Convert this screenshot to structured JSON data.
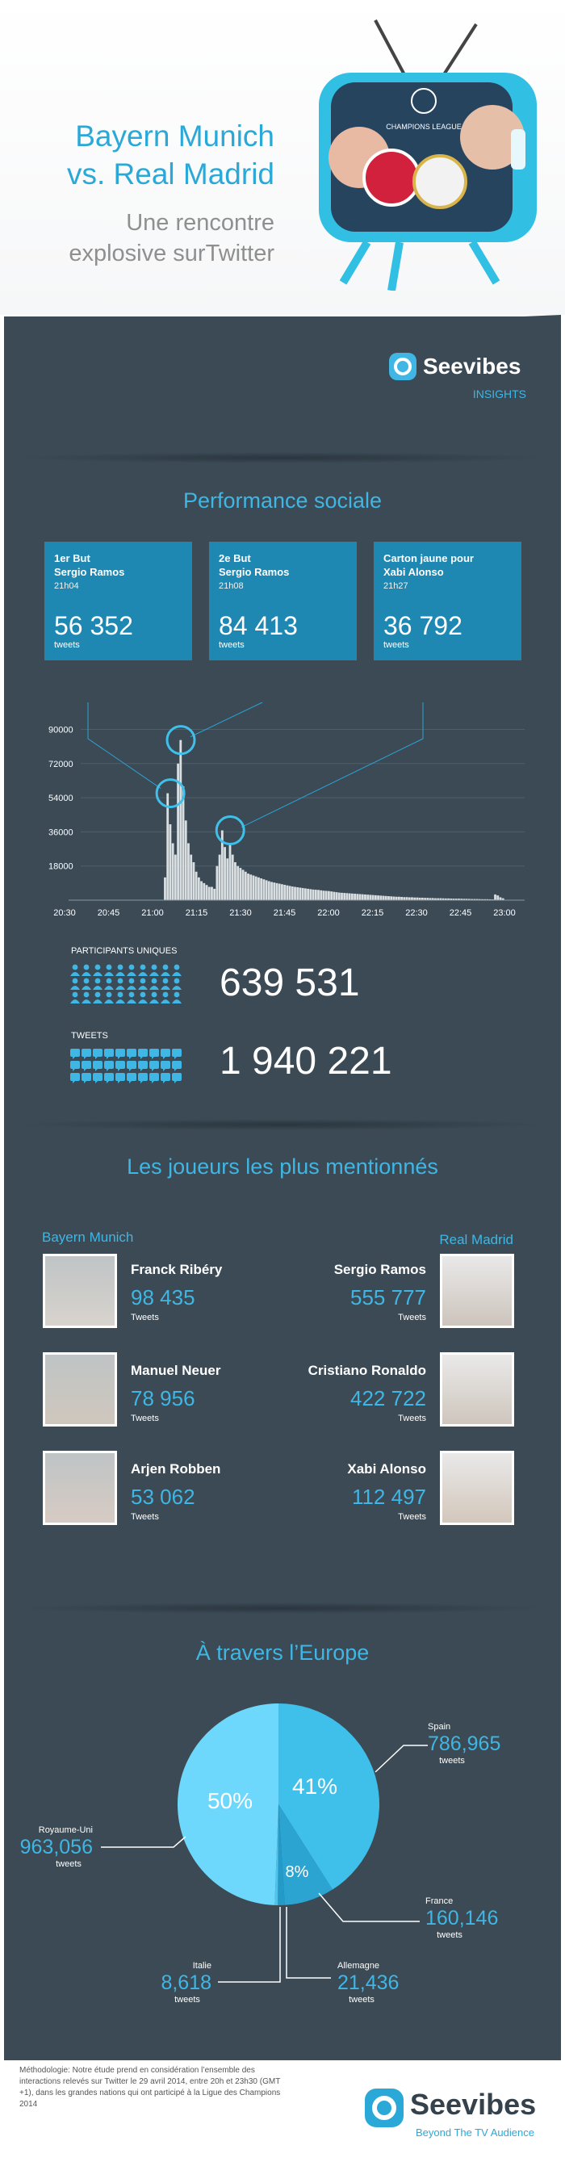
{
  "header": {
    "title_line1": "Bayern Munich",
    "title_line2": "vs. Real Madrid",
    "subtitle_line1": "Une rencontre",
    "subtitle_line2": "explosive surTwitter",
    "tv_caption": "CHAMPIONS LEAGUE"
  },
  "brand": {
    "name": "Seevibes",
    "sub": "INSIGHTS"
  },
  "social": {
    "title": "Performance sociale",
    "cards": [
      {
        "title1": "1er But",
        "title2": "Sergio Ramos",
        "time": "21h04",
        "value": "56 352",
        "unit": "tweets"
      },
      {
        "title1": "2e But",
        "title2": "Sergio Ramos",
        "time": "21h08",
        "value": "84 413",
        "unit": "tweets"
      },
      {
        "title1": "Carton jaune pour",
        "title2": "Xabi Alonso",
        "time": "21h27",
        "value": "36 792",
        "unit": "tweets"
      }
    ]
  },
  "chart_data": {
    "type": "bar",
    "ylim": [
      0,
      100000
    ],
    "yticks": [
      "90000",
      "72000",
      "54000",
      "36000",
      "18000"
    ],
    "xticks": [
      "20:30",
      "20:45",
      "21:00",
      "21:15",
      "21:30",
      "21:45",
      "22:00",
      "22:15",
      "22:30",
      "22:45",
      "23:00"
    ],
    "highlights": [
      {
        "minute": "21:04",
        "value": 56352
      },
      {
        "minute": "21:08",
        "value": 84413
      },
      {
        "minute": "21:27",
        "value": 36792
      }
    ],
    "values": [
      0,
      0,
      0,
      0,
      0,
      0,
      0,
      0,
      0,
      0,
      0,
      0,
      0,
      0,
      0,
      0,
      0,
      0,
      0,
      0,
      0,
      0,
      0,
      0,
      0,
      0,
      0,
      0,
      0,
      0,
      0,
      0,
      12000,
      56352,
      40000,
      30000,
      24000,
      72000,
      84413,
      60000,
      42000,
      30000,
      24000,
      20000,
      15000,
      12000,
      10000,
      9000,
      8000,
      7000,
      7000,
      6000,
      18000,
      24000,
      36792,
      28000,
      22000,
      30000,
      24000,
      20000,
      18000,
      17000,
      16000,
      15000,
      14000,
      13500,
      13000,
      12500,
      12000,
      11500,
      11000,
      10500,
      10000,
      9600,
      9300,
      9000,
      8700,
      8400,
      8100,
      7800,
      7500,
      7200,
      7000,
      6800,
      6600,
      6400,
      6200,
      6000,
      5800,
      5600,
      5500,
      5400,
      5200,
      5000,
      4900,
      4800,
      4600,
      4400,
      4200,
      4000,
      3900,
      3800,
      3700,
      3600,
      3500,
      3400,
      3300,
      3200,
      3100,
      3000,
      2900,
      2800,
      2700,
      2600,
      2500,
      2400,
      2300,
      2200,
      2100,
      2000,
      1900,
      1800,
      1800,
      1700,
      1600,
      1600,
      1500,
      1500,
      1400,
      1400,
      1300,
      1300,
      1200,
      1200,
      1100,
      1100,
      1000,
      1000,
      1000,
      950,
      900,
      900,
      850,
      800,
      800,
      800,
      750,
      700,
      700,
      650,
      600,
      600,
      600,
      550,
      500,
      500,
      500,
      450,
      400,
      3000,
      2500,
      1500,
      1000
    ]
  },
  "stats": {
    "participants_label": "PARTICIPANTS UNIQUES",
    "participants_value": "639 531",
    "tweets_label": "TWEETS",
    "tweets_value": "1 940 221"
  },
  "players": {
    "title": "Les joueurs les plus mentionnés",
    "team_left": "Bayern Munich",
    "team_right": "Real Madrid",
    "left": [
      {
        "name": "Franck Ribéry",
        "value": "98 435",
        "unit": "Tweets"
      },
      {
        "name": "Manuel Neuer",
        "value": "78 956",
        "unit": "Tweets"
      },
      {
        "name": "Arjen Robben",
        "value": "53 062",
        "unit": "Tweets"
      }
    ],
    "right": [
      {
        "name": "Sergio Ramos",
        "value": "555 777",
        "unit": "Tweets"
      },
      {
        "name": "Cristiano Ronaldo",
        "value": "422 722",
        "unit": "Tweets"
      },
      {
        "name": "Xabi Alonso",
        "value": "112 497",
        "unit": "Tweets"
      }
    ]
  },
  "europe": {
    "title": "À travers l’Europe",
    "pie": [
      {
        "country": "Spain",
        "value": "786,965",
        "unit": "tweets",
        "percent_label": "41%",
        "share": 0.41,
        "color": "#3fc0ea"
      },
      {
        "country": "France",
        "value": "160,146",
        "unit": "tweets",
        "percent_label": "8%",
        "share": 0.08,
        "color": "#2ba4d2"
      },
      {
        "country": "Allemagne",
        "value": "21,436",
        "unit": "tweets",
        "percent_label": "",
        "share": 0.011,
        "color": "#249ac8"
      },
      {
        "country": "Italie",
        "value": "8,618",
        "unit": "tweets",
        "percent_label": "",
        "share": 0.005,
        "color": "#4cc4ec"
      },
      {
        "country": "Royaume-Uni",
        "value": "963,056",
        "unit": "tweets",
        "percent_label": "50%",
        "share": 0.494,
        "color": "#6dd8fb"
      }
    ]
  },
  "footer": {
    "methodology": "Méthodologie: Notre étude prend en considération l’ensemble des interactions relevés sur Twitter le 29 avril 2014, entre 20h et 23h30 (GMT +1), dans les grandes nations qui ont participé à la Ligue des Champions 2014",
    "brand": "Seevibes",
    "tagline": "Beyond The TV Audience"
  }
}
